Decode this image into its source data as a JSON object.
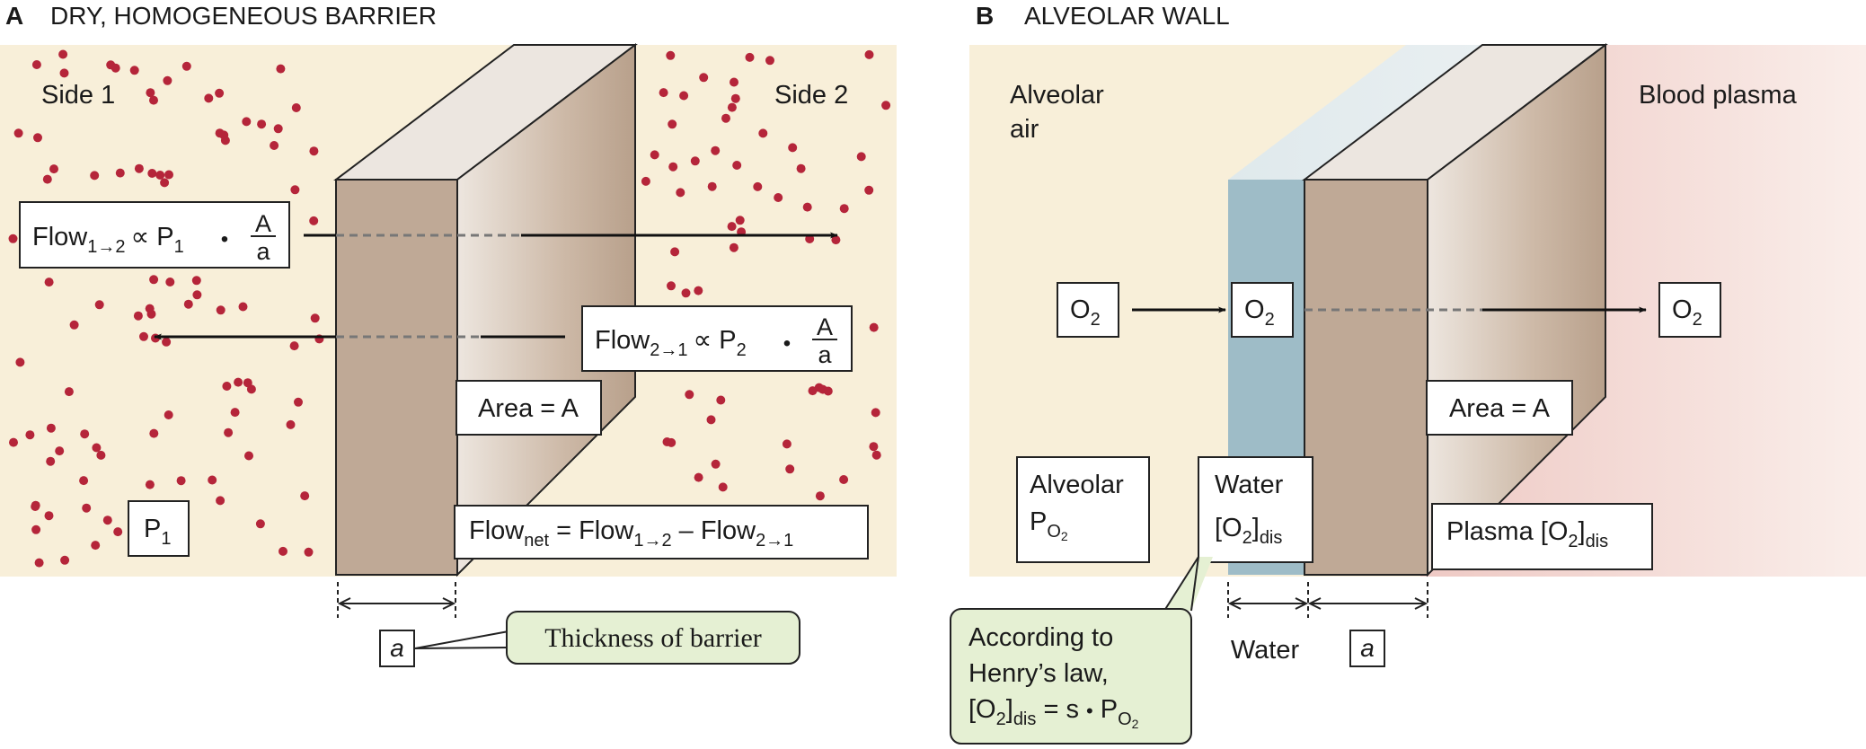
{
  "panel_a": {
    "letter": "A",
    "title": "DRY, HOMOGENEOUS BARRIER",
    "side1": "Side 1",
    "side2": "Side 2",
    "flow12": {
      "main": "Flow",
      "sub": "1→2",
      "prop": "∝ P",
      "psub": "1",
      "dot": "•",
      "num": "A",
      "den": "a"
    },
    "flow21": {
      "main": "Flow",
      "sub": "2→1",
      "prop": "∝ P",
      "psub": "2",
      "dot": "•",
      "num": "A",
      "den": "a"
    },
    "area": "Area = A",
    "p1": {
      "main": "P",
      "sub": "1"
    },
    "flownet": {
      "a": "Flow",
      "asub": "net",
      "b": " = Flow",
      "bsub": "1→2",
      "c": " – Flow",
      "csub": "2→1"
    },
    "thickness_symbol": "a",
    "callout": "Thickness of barrier"
  },
  "panel_b": {
    "letter": "B",
    "title": "ALVEOLAR WALL",
    "alveolar_air_1": "Alveolar",
    "alveolar_air_2": "air",
    "blood_plasma": "Blood plasma",
    "o2_left": {
      "main": "O",
      "sub": "2"
    },
    "o2_mid": {
      "main": "O",
      "sub": "2"
    },
    "o2_right": {
      "main": "O",
      "sub": "2"
    },
    "area": "Area = A",
    "alv_po2": {
      "line1": "Alveolar",
      "main": "P",
      "sub": "O",
      "subsub": "2"
    },
    "water_o2": {
      "line1": "Water",
      "a": "[O",
      "asub": "2",
      "b": "]",
      "bsub": "dis"
    },
    "plasma_o2": {
      "a": "Plasma [O",
      "asub": "2",
      "b": "]",
      "bsub": "dis"
    },
    "water_label": "Water",
    "thickness_symbol": "a",
    "henry": {
      "line1": "According to",
      "line2": "Henry’s law,",
      "a": "[O",
      "asub": "2",
      "b": "]",
      "bsub": "dis",
      "c": " = s ",
      "dot": "•",
      "d": " P",
      "dsub": "O",
      "dsubsub": "2"
    }
  },
  "colors": {
    "background": "#f8efd9",
    "dot": "#b5253a",
    "slab_front": "#bfa996",
    "slab_top": "#ece6e0",
    "water": "#9ebcc7",
    "plasma": "#f1d4d0",
    "callout": "#e5f0d3"
  }
}
